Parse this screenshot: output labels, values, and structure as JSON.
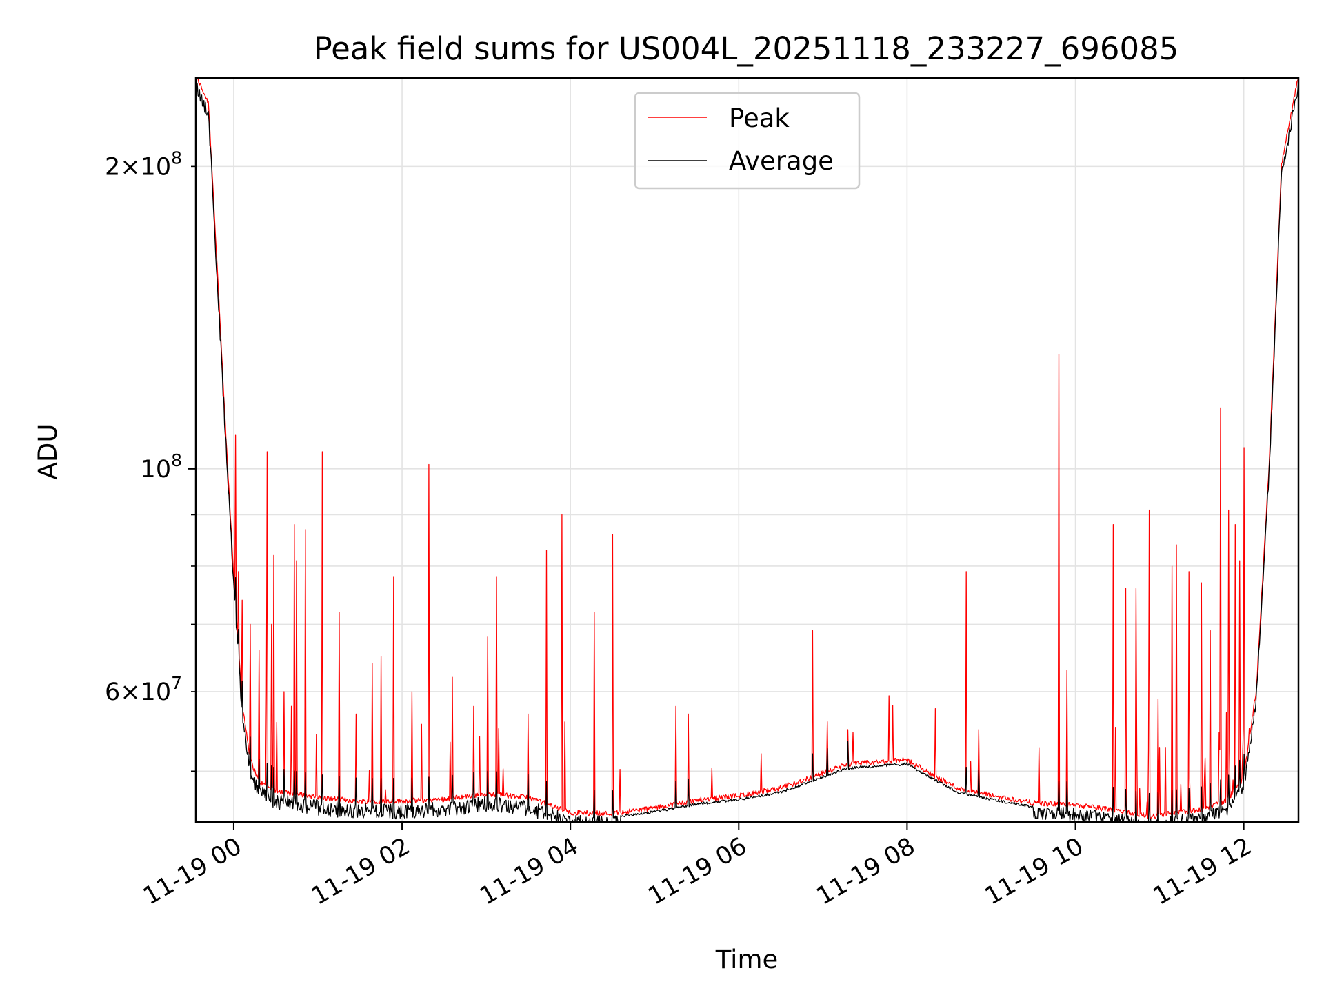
{
  "chart_data": {
    "type": "line",
    "title": "Peak field sums for US004L_20251118_233227_696085",
    "xlabel": "Time",
    "ylabel": "ADU",
    "yscale": "log",
    "ylim": [
      44500000,
      245000000
    ],
    "xlim_hours": [
      -0.45,
      12.65
    ],
    "grid": true,
    "legend_position": "top-center",
    "x_ticks": [
      {
        "hour": 0,
        "label": "11-19 00"
      },
      {
        "hour": 2,
        "label": "11-19 02"
      },
      {
        "hour": 4,
        "label": "11-19 04"
      },
      {
        "hour": 6,
        "label": "11-19 06"
      },
      {
        "hour": 8,
        "label": "11-19 08"
      },
      {
        "hour": 10,
        "label": "11-19 10"
      },
      {
        "hour": 12,
        "label": "11-19 12"
      }
    ],
    "y_major_ticks": [
      {
        "value": 100000000,
        "base": "10",
        "exp": "8"
      }
    ],
    "y_minor_ticks": [
      {
        "value": 60000000,
        "mant": "6",
        "exp": "7"
      },
      {
        "value": 200000000,
        "mant": "2",
        "exp": "8"
      }
    ],
    "y_minor_grid": [
      50000000,
      70000000,
      80000000,
      90000000
    ],
    "series": [
      {
        "name": "Peak",
        "color": "#ff0000"
      },
      {
        "name": "Average",
        "color": "#000000"
      }
    ],
    "baseline_profile": [
      [
        -0.45,
        245000000
      ],
      [
        -0.3,
        230000000
      ],
      [
        -0.2,
        160000000
      ],
      [
        -0.1,
        110000000
      ],
      [
        0.0,
        78000000
      ],
      [
        0.1,
        58000000
      ],
      [
        0.2,
        51000000
      ],
      [
        0.3,
        48500000
      ],
      [
        0.5,
        47500000
      ],
      [
        1.0,
        46800000
      ],
      [
        1.5,
        46400000
      ],
      [
        2.0,
        46400000
      ],
      [
        2.5,
        46600000
      ],
      [
        3.0,
        47200000
      ],
      [
        3.5,
        46800000
      ],
      [
        4.0,
        45200000
      ],
      [
        4.5,
        45100000
      ],
      [
        5.0,
        45700000
      ],
      [
        5.5,
        46500000
      ],
      [
        6.0,
        47000000
      ],
      [
        6.5,
        47800000
      ],
      [
        7.0,
        49500000
      ],
      [
        7.3,
        50500000
      ],
      [
        7.6,
        50700000
      ],
      [
        8.0,
        51000000
      ],
      [
        8.3,
        49300000
      ],
      [
        8.6,
        47800000
      ],
      [
        9.0,
        47000000
      ],
      [
        9.5,
        46200000
      ],
      [
        10.0,
        46000000
      ],
      [
        10.5,
        45400000
      ],
      [
        10.9,
        44800000
      ],
      [
        11.2,
        45200000
      ],
      [
        11.5,
        45500000
      ],
      [
        11.8,
        46500000
      ],
      [
        12.0,
        49000000
      ],
      [
        12.15,
        60000000
      ],
      [
        12.3,
        100000000
      ],
      [
        12.45,
        200000000
      ],
      [
        12.65,
        245000000
      ]
    ],
    "peak_spikes": [
      [
        0.02,
        108000000
      ],
      [
        0.06,
        79000000
      ],
      [
        0.1,
        74000000
      ],
      [
        0.2,
        70000000
      ],
      [
        0.3,
        66000000
      ],
      [
        0.4,
        104000000
      ],
      [
        0.45,
        70000000
      ],
      [
        0.48,
        82000000
      ],
      [
        0.6,
        60000000
      ],
      [
        0.72,
        88000000
      ],
      [
        0.75,
        81000000
      ],
      [
        0.85,
        87000000
      ],
      [
        1.05,
        104000000
      ],
      [
        1.25,
        72000000
      ],
      [
        1.45,
        57000000
      ],
      [
        1.65,
        64000000
      ],
      [
        1.75,
        65000000
      ],
      [
        1.9,
        78000000
      ],
      [
        2.12,
        60000000
      ],
      [
        2.32,
        101000000
      ],
      [
        2.6,
        62000000
      ],
      [
        2.85,
        58000000
      ],
      [
        3.02,
        68000000
      ],
      [
        3.12,
        78000000
      ],
      [
        3.5,
        57000000
      ],
      [
        3.72,
        83000000
      ],
      [
        3.9,
        90000000
      ],
      [
        4.28,
        72000000
      ],
      [
        4.5,
        86000000
      ],
      [
        5.25,
        58000000
      ],
      [
        5.4,
        57000000
      ],
      [
        6.88,
        69000000
      ],
      [
        7.05,
        56000000
      ],
      [
        7.3,
        55000000
      ],
      [
        8.7,
        79000000
      ],
      [
        8.85,
        55000000
      ],
      [
        9.8,
        130000000
      ],
      [
        9.9,
        63000000
      ],
      [
        10.45,
        88000000
      ],
      [
        10.6,
        76000000
      ],
      [
        10.72,
        76000000
      ],
      [
        10.88,
        91000000
      ],
      [
        10.98,
        59000000
      ],
      [
        11.15,
        80000000
      ],
      [
        11.2,
        84000000
      ],
      [
        11.35,
        79000000
      ],
      [
        11.5,
        77000000
      ],
      [
        11.6,
        69000000
      ],
      [
        11.72,
        115000000
      ],
      [
        11.82,
        91000000
      ],
      [
        11.9,
        88000000
      ],
      [
        11.95,
        81000000
      ],
      [
        12.0,
        105000000
      ]
    ],
    "avg_dips": [
      [
        3.9,
        43800000
      ],
      [
        4.45,
        44000000
      ],
      [
        10.78,
        43800000
      ],
      [
        10.85,
        44200000
      ]
    ]
  }
}
